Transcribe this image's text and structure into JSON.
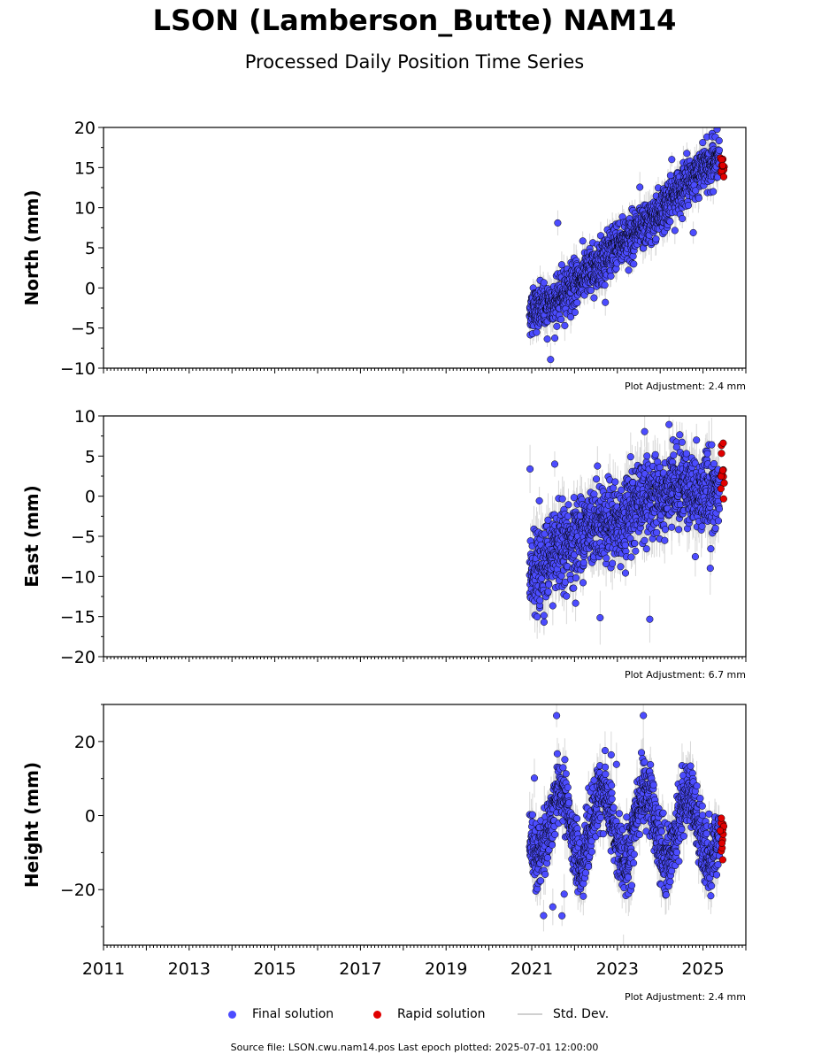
{
  "title": "LSON (Lamberson_Butte) NAM14",
  "subtitle": "Processed Daily Position Time Series",
  "colors": {
    "final": "#4c4cff",
    "rapid": "#e00000",
    "stddev": "#c8c8c8",
    "edge": "#000000"
  },
  "legend": {
    "final": "Final solution",
    "rapid": "Rapid solution",
    "stddev": "Std. Dev."
  },
  "source_text": "Source file: LSON.cwu.nam14.pos  Last epoch plotted: 2025-07-01 12:00:00",
  "chart_data": [
    {
      "type": "scatter",
      "ylabel": "North (mm)",
      "ylim": [
        -10,
        20
      ],
      "yticks": [
        -10,
        -5,
        0,
        5,
        10,
        15,
        20
      ],
      "yticklabels": [
        "−10",
        "−5",
        "0",
        "5",
        "10",
        "15",
        "20"
      ],
      "xlim": [
        2011,
        2026
      ],
      "adjustment": "Plot Adjustment: 2.4 mm",
      "final_series": {
        "name": "Final solution",
        "start": 2020.95,
        "end": 2025.38,
        "trend": [
          [
            2020.95,
            -3.0
          ],
          [
            2021.5,
            -2.0
          ],
          [
            2022.0,
            0.5
          ],
          [
            2022.5,
            2.5
          ],
          [
            2023.0,
            5.5
          ],
          [
            2023.5,
            7.0
          ],
          [
            2024.0,
            9.5
          ],
          [
            2024.5,
            12.5
          ],
          [
            2025.0,
            15.0
          ],
          [
            2025.38,
            15.8
          ]
        ],
        "scatter_sd": 1.4,
        "n": 1300
      },
      "rapid_series": {
        "name": "Rapid solution",
        "start": 2025.4,
        "end": 2025.5,
        "center": 15.0,
        "spread": 1.2,
        "n": 12
      }
    },
    {
      "type": "scatter",
      "ylabel": "East (mm)",
      "ylim": [
        -20,
        10
      ],
      "yticks": [
        -20,
        -15,
        -10,
        -5,
        0,
        5,
        10
      ],
      "yticklabels": [
        "−20",
        "−15",
        "−10",
        "−5",
        "0",
        "5",
        "10"
      ],
      "xlim": [
        2011,
        2026
      ],
      "adjustment": "Plot Adjustment: 6.7 mm",
      "final_series": {
        "name": "Final solution",
        "start": 2020.95,
        "end": 2025.38,
        "trend": [
          [
            2020.95,
            -10.0
          ],
          [
            2021.5,
            -7.5
          ],
          [
            2022.0,
            -5.5
          ],
          [
            2022.5,
            -3.0
          ],
          [
            2023.0,
            -3.5
          ],
          [
            2023.5,
            -0.5
          ],
          [
            2024.0,
            -0.5
          ],
          [
            2024.5,
            1.5
          ],
          [
            2025.0,
            0.5
          ],
          [
            2025.38,
            0.5
          ]
        ],
        "scatter_sd": 2.4,
        "n": 1300
      },
      "rapid_series": {
        "name": "Rapid solution",
        "start": 2025.4,
        "end": 2025.5,
        "center": 2.5,
        "spread": 1.6,
        "n": 12
      }
    },
    {
      "type": "scatter",
      "ylabel": "Height (mm)",
      "ylim": [
        -35,
        30
      ],
      "yticks": [
        -20,
        0,
        20
      ],
      "yticklabels": [
        "−20",
        "0",
        "20"
      ],
      "xlim": [
        2011,
        2026
      ],
      "xticks": [
        2011,
        2013,
        2015,
        2017,
        2019,
        2021,
        2023,
        2025
      ],
      "xticklabels": [
        "2011",
        "2013",
        "2015",
        "2017",
        "2019",
        "2021",
        "2023",
        "2025"
      ],
      "adjustment": "Plot Adjustment: 2.4 mm",
      "final_series": {
        "name": "Final solution",
        "start": 2020.95,
        "end": 2025.38,
        "trend": [
          [
            2020.95,
            -3.0
          ],
          [
            2025.38,
            -3.0
          ]
        ],
        "seasonal_amplitude": 9.0,
        "seasonal_peak": 0.65,
        "scatter_sd": 4.5,
        "n": 1300
      },
      "rapid_series": {
        "name": "Rapid solution",
        "start": 2025.4,
        "end": 2025.5,
        "center": -4.0,
        "spread": 4.5,
        "n": 14
      }
    }
  ]
}
